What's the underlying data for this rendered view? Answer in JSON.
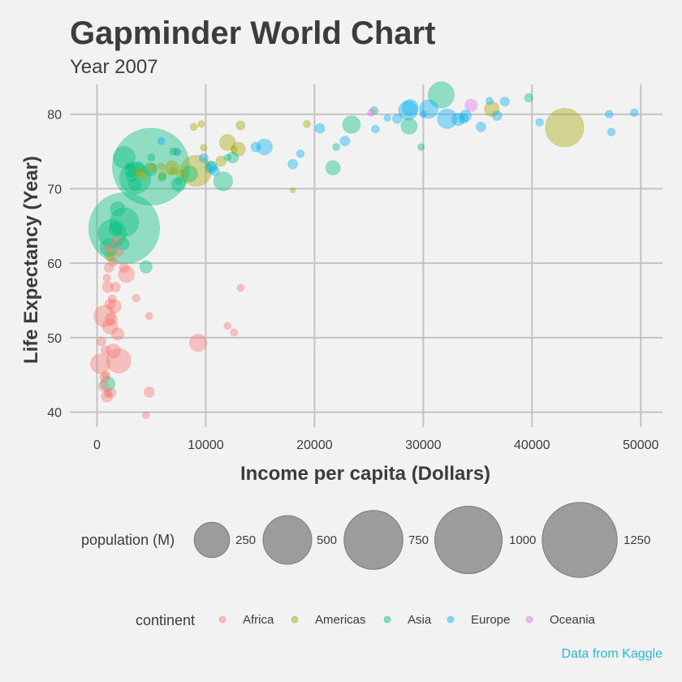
{
  "chart_data": {
    "type": "scatter",
    "title": "Gapminder World Chart",
    "subtitle": "Year 2007",
    "xlabel": "Income per capita (Dollars)",
    "ylabel": "Life Expectancy (Year)",
    "caption": "Data from Kaggle",
    "xlim": [
      -2500,
      52000
    ],
    "ylim": [
      38,
      84
    ],
    "x_ticks": [
      0,
      10000,
      20000,
      30000,
      40000,
      50000
    ],
    "x_tick_labels": [
      "0",
      "10000",
      "20000",
      "30000",
      "40000",
      "50000"
    ],
    "y_ticks": [
      40,
      50,
      60,
      70,
      80
    ],
    "y_tick_labels": [
      "40",
      "50",
      "60",
      "70",
      "80"
    ],
    "grid": true,
    "size_legend": {
      "title": "population (M)",
      "values": [
        250,
        500,
        750,
        1000,
        1250
      ],
      "labels": [
        "250",
        "500",
        "750",
        "1000",
        "1250"
      ]
    },
    "color_legend": {
      "title": "continent",
      "items": [
        {
          "name": "Africa",
          "color": "#f8766d"
        },
        {
          "name": "Americas",
          "color": "#a3a500"
        },
        {
          "name": "Asia",
          "color": "#00bf7d"
        },
        {
          "name": "Europe",
          "color": "#00b0f6"
        },
        {
          "name": "Oceania",
          "color": "#e76bf3"
        }
      ]
    },
    "series": [
      {
        "name": "Africa",
        "color": "#f8766d",
        "points": [
          [
            300,
            46.5,
            65
          ],
          [
            400,
            49.5,
            8
          ],
          [
            600,
            43.5,
            12
          ],
          [
            700,
            52.9,
            80
          ],
          [
            800,
            48.3,
            9
          ],
          [
            800,
            45,
            6
          ],
          [
            900,
            42.1,
            15
          ],
          [
            1000,
            56.8,
            14
          ],
          [
            1000,
            42.5,
            5
          ],
          [
            1100,
            59.4,
            9
          ],
          [
            1200,
            51.5,
            35
          ],
          [
            1200,
            54.5,
            12
          ],
          [
            1300,
            52.5,
            20
          ],
          [
            1300,
            42.6,
            10
          ],
          [
            1400,
            55.2,
            6
          ],
          [
            1500,
            60.2,
            8
          ],
          [
            1500,
            48.2,
            30
          ],
          [
            1600,
            54.2,
            25
          ],
          [
            1700,
            56.8,
            10
          ],
          [
            1900,
            50.5,
            20
          ],
          [
            2000,
            46.9,
            110
          ],
          [
            2000,
            61.5,
            8
          ],
          [
            2500,
            59.4,
            10
          ],
          [
            2700,
            58.5,
            40
          ],
          [
            3600,
            55.3,
            5
          ],
          [
            4500,
            39.6,
            4
          ],
          [
            4800,
            42.7,
            12
          ],
          [
            4800,
            52.9,
            4
          ],
          [
            9300,
            49.3,
            48
          ],
          [
            12000,
            51.6,
            4
          ],
          [
            12600,
            50.7,
            4
          ],
          [
            13200,
            56.7,
            4
          ],
          [
            900,
            58,
            5
          ],
          [
            1100,
            62,
            10
          ],
          [
            1800,
            63,
            9
          ],
          [
            700,
            44.7,
            10
          ]
        ]
      },
      {
        "name": "Americas",
        "color": "#a3a500",
        "points": [
          [
            1200,
            60.9,
            9
          ],
          [
            3800,
            72.2,
            6
          ],
          [
            4200,
            71.9,
            10
          ],
          [
            5100,
            72.8,
            8
          ],
          [
            5900,
            73,
            3
          ],
          [
            6000,
            71.8,
            6
          ],
          [
            6900,
            72.8,
            30
          ],
          [
            7000,
            72.4,
            4
          ],
          [
            7300,
            75,
            4
          ],
          [
            7700,
            72,
            6
          ],
          [
            8900,
            78.3,
            4
          ],
          [
            9100,
            72.4,
            190
          ],
          [
            9600,
            78.7,
            3
          ],
          [
            9800,
            75.5,
            3
          ],
          [
            11400,
            73.7,
            12
          ],
          [
            12000,
            76.2,
            40
          ],
          [
            12600,
            75.3,
            3
          ],
          [
            13000,
            75.3,
            28
          ],
          [
            13200,
            78.5,
            8
          ],
          [
            18000,
            69.8,
            1
          ],
          [
            19300,
            78.7,
            4
          ],
          [
            36300,
            80.7,
            33
          ],
          [
            43000,
            78.2,
            301
          ]
        ]
      },
      {
        "name": "Asia",
        "color": "#00bf7d",
        "points": [
          [
            1000,
            43.8,
            30
          ],
          [
            1100,
            62.1,
            49
          ],
          [
            1400,
            64,
            150
          ],
          [
            1700,
            64.6,
            25
          ],
          [
            1900,
            67.3,
            30
          ],
          [
            2400,
            62.6,
            20
          ],
          [
            2500,
            74.2,
            85
          ],
          [
            2500,
            65.5,
            160
          ],
          [
            2500,
            64.7,
            1110
          ],
          [
            3000,
            73,
            5
          ],
          [
            3100,
            72.4,
            20
          ],
          [
            3200,
            71.7,
            15
          ],
          [
            3500,
            70.6,
            20
          ],
          [
            3500,
            71.4,
            190
          ],
          [
            3800,
            72.9,
            15
          ],
          [
            4500,
            59.5,
            20
          ],
          [
            4900,
            72.6,
            25
          ],
          [
            4959,
            72.96,
            1320
          ],
          [
            5000,
            74.2,
            4
          ],
          [
            6000,
            71.5,
            5
          ],
          [
            7000,
            75,
            4
          ],
          [
            7500,
            70.6,
            30
          ],
          [
            7500,
            71,
            3
          ],
          [
            8500,
            72,
            40
          ],
          [
            10500,
            72.9,
            20
          ],
          [
            11600,
            71,
            60
          ],
          [
            12500,
            74.2,
            15
          ],
          [
            12000,
            74.2,
            3
          ],
          [
            21700,
            72.8,
            30
          ],
          [
            22000,
            75.6,
            4
          ],
          [
            23400,
            78.6,
            50
          ],
          [
            25500,
            80.5,
            5
          ],
          [
            28700,
            78.4,
            40
          ],
          [
            31656,
            82.6,
            127
          ],
          [
            29800,
            75.6,
            3
          ],
          [
            39700,
            82.2,
            7
          ]
        ]
      },
      {
        "name": "Europe",
        "color": "#00b0f6",
        "points": [
          [
            5900,
            76.4,
            4
          ],
          [
            7400,
            74.9,
            4
          ],
          [
            9800,
            74.1,
            8
          ],
          [
            10500,
            73,
            8
          ],
          [
            10800,
            72.4,
            10
          ],
          [
            14600,
            75.6,
            10
          ],
          [
            15400,
            75.6,
            38
          ],
          [
            18000,
            73.3,
            10
          ],
          [
            18700,
            74.7,
            5
          ],
          [
            20500,
            78.1,
            10
          ],
          [
            22800,
            76.4,
            10
          ],
          [
            25600,
            78,
            5
          ],
          [
            27600,
            79.4,
            9
          ],
          [
            28600,
            80.5,
            60
          ],
          [
            28800,
            80.9,
            40
          ],
          [
            30500,
            80.7,
            58
          ],
          [
            32200,
            79.4,
            65
          ],
          [
            33200,
            79.3,
            20
          ],
          [
            33700,
            79.4,
            10
          ],
          [
            33900,
            79.8,
            16
          ],
          [
            35300,
            78.3,
            10
          ],
          [
            36100,
            81.8,
            4
          ],
          [
            36800,
            79.8,
            10
          ],
          [
            37500,
            81.7,
            8
          ],
          [
            40700,
            78.9,
            5
          ],
          [
            47100,
            80,
            5
          ],
          [
            47300,
            77.6,
            5
          ],
          [
            49400,
            80.2,
            5
          ],
          [
            26700,
            79.5,
            3
          ],
          [
            30000,
            80,
            3
          ]
        ]
      },
      {
        "name": "Oceania",
        "color": "#e76bf3",
        "points": [
          [
            25200,
            80.2,
            4
          ],
          [
            34400,
            81.2,
            20
          ]
        ]
      }
    ]
  }
}
